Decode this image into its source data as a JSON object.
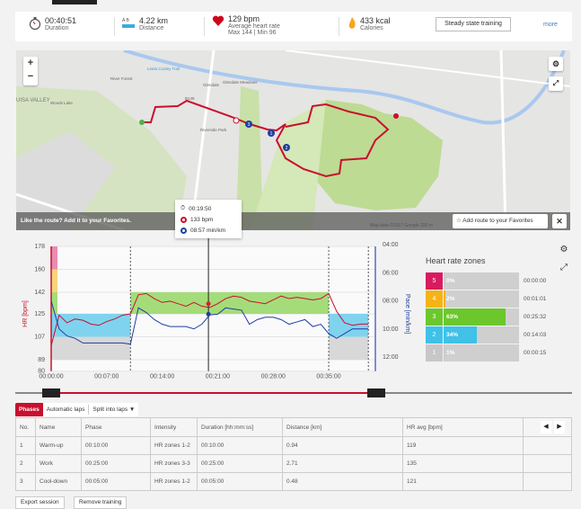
{
  "summary": {
    "duration": {
      "value": "00:40:51",
      "label": "Duration",
      "icon": "stopwatch-icon"
    },
    "distance": {
      "value": "4.22 km",
      "label": "Distance",
      "icon": "distance-icon"
    },
    "heart_rate": {
      "value": "129 bpm",
      "label": "Average heart rate",
      "minmax": "Max 144  |  Min 96",
      "icon": "heart-icon"
    },
    "calories": {
      "value": "433 kcal",
      "label": "Calories",
      "icon": "flame-icon"
    },
    "training_type": "Steady state training",
    "more": "more"
  },
  "map": {
    "labels": {
      "trail": "Leela Cooley Trail",
      "valley": "UISA VALLEY",
      "road1": "River Forest",
      "road2": "Glendale",
      "road3": "Glendale Meadows",
      "road4": "Riverside Park",
      "road5": "Woods Lake",
      "route_no": "B149"
    },
    "zoom_in": "+",
    "zoom_out": "−",
    "overlay_message": "Like the route? Add it to your Favorites.",
    "credit": "Map data ©2017 Google   200 m",
    "add_favorite": "Add route to your Favorites",
    "close": "✕",
    "markers": [
      "1",
      "2",
      "3"
    ]
  },
  "tooltip": {
    "time": "00:19:50",
    "hr": "133 bpm",
    "pace": "08:57 min/km"
  },
  "chart_data": {
    "type": "line",
    "x_label": "",
    "y_left_label": "HR [bpm]",
    "y_right_label": "Pace [min/km]",
    "x_ticks": [
      "00:00:00",
      "00:07:00",
      "00:14:00",
      "00:21:00",
      "00:28:00",
      "00:35:00"
    ],
    "y_left_ticks": [
      178,
      160,
      142,
      125,
      107,
      89,
      80
    ],
    "y_right_ticks": [
      "04:00",
      "06:00",
      "08:00",
      "10:00",
      "12:00"
    ],
    "y_left_range": [
      80,
      178
    ],
    "y_right_range": [
      "04:00",
      "12:00"
    ],
    "x_range_min": [
      0,
      40.85
    ],
    "phase_boundaries_min": [
      10,
      35,
      40
    ],
    "cursor_min": 19.83,
    "phase_zone_bands": [
      {
        "from_min": 0,
        "to_min": 10,
        "zones": [
          1,
          2
        ]
      },
      {
        "from_min": 10,
        "to_min": 35,
        "zones": [
          3
        ]
      },
      {
        "from_min": 35,
        "to_min": 40,
        "zones": [
          1,
          2
        ]
      }
    ],
    "zone_limits_bpm": [
      [
        89,
        107
      ],
      [
        107,
        125
      ],
      [
        125,
        142
      ],
      [
        142,
        160
      ],
      [
        160,
        178
      ]
    ],
    "series": [
      {
        "name": "HR [bpm]",
        "color": "#c8102e",
        "x_min": [
          0,
          1,
          2,
          3,
          4,
          5,
          6,
          7,
          8,
          9,
          10,
          11,
          12,
          13,
          14,
          15,
          16,
          17,
          18,
          19,
          20,
          21,
          22,
          23,
          24,
          25,
          26,
          27,
          28,
          29,
          30,
          31,
          32,
          33,
          34,
          35,
          36,
          37,
          38,
          39,
          40
        ],
        "values": [
          100,
          124,
          118,
          121,
          120,
          117,
          116,
          119,
          121,
          124,
          125,
          140,
          141,
          137,
          134,
          135,
          133,
          131,
          134,
          131,
          130,
          133,
          137,
          139,
          138,
          135,
          134,
          133,
          136,
          139,
          137,
          138,
          137,
          136,
          137,
          141,
          127,
          118,
          116,
          117,
          117
        ]
      },
      {
        "name": "Pace [min/km]",
        "color": "#1f3fa0",
        "x_min": [
          0,
          1,
          2,
          3,
          4,
          5,
          6,
          7,
          8,
          9,
          10,
          11,
          12,
          13,
          14,
          15,
          16,
          17,
          18,
          19,
          20,
          21,
          22,
          23,
          24,
          25,
          26,
          27,
          28,
          29,
          30,
          31,
          32,
          33,
          34,
          35,
          36,
          37,
          38,
          39,
          40
        ],
        "values": [
          "08:00",
          "10:00",
          "10:30",
          "10:40",
          "11:00",
          "11:00",
          "11:00",
          "11:00",
          "11:00",
          "11:00",
          "11:05",
          "08:30",
          "08:50",
          "09:20",
          "09:40",
          "09:50",
          "09:50",
          "09:50",
          "10:00",
          "09:40",
          "09:00",
          "08:57",
          "08:30",
          "08:35",
          "08:40",
          "09:40",
          "09:20",
          "09:10",
          "09:10",
          "09:20",
          "09:40",
          "09:30",
          "09:20",
          "09:50",
          "09:40",
          "10:20",
          "10:40",
          "10:20",
          "10:00",
          "10:00",
          "10:00"
        ]
      }
    ]
  },
  "zones": {
    "title": "Heart rate zones",
    "items": [
      {
        "zone": "5",
        "pct": "0%",
        "percent": 0,
        "time": "00:00:00",
        "color": "#d81b60"
      },
      {
        "zone": "4",
        "pct": "2%",
        "percent": 2,
        "time": "00:01:01",
        "color": "#f5b316"
      },
      {
        "zone": "3",
        "pct": "63%",
        "percent": 63,
        "time": "00:25:32",
        "color": "#6cc72d"
      },
      {
        "zone": "2",
        "pct": "34%",
        "percent": 34,
        "time": "00:14:03",
        "color": "#3fc1e8"
      },
      {
        "zone": "1",
        "pct": "1%",
        "percent": 1,
        "time": "00:00:15",
        "color": "#c7c7c7"
      }
    ]
  },
  "tabs": {
    "phases": "Phases",
    "auto_laps": "Automatic laps",
    "split": "Split into laps ▼"
  },
  "table": {
    "headers": [
      "No.",
      "Name",
      "Phase",
      "Intensity",
      "Duration [hh:mm:ss]",
      "Distance [km]",
      "HR avg [bpm]"
    ],
    "rows": [
      [
        "1",
        "Warm-up",
        "00:10:00",
        "HR zones 1-2",
        "00:10:00",
        "0.94",
        "119"
      ],
      [
        "2",
        "Work",
        "00:25:00",
        "HR zones 3-3",
        "00:25:00",
        "2.71",
        "135"
      ],
      [
        "3",
        "Cool-down",
        "00:05:00",
        "HR zones 1-2",
        "00:05:00",
        "0.48",
        "121"
      ]
    ]
  },
  "footer": {
    "export": "Export session",
    "remove": "Remove training"
  },
  "colors": {
    "accent": "#c8102e",
    "pace": "#1f3fa0",
    "link": "#3a7fc1"
  }
}
